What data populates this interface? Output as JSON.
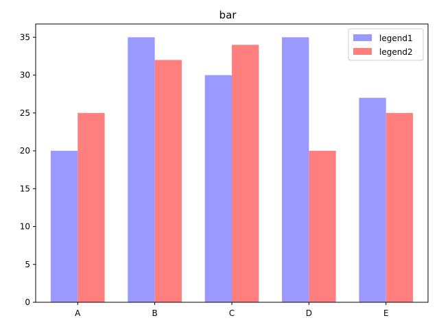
{
  "chart_data": {
    "type": "bar",
    "title": "bar",
    "xlabel": "",
    "ylabel": "",
    "categories": [
      "A",
      "B",
      "C",
      "D",
      "E"
    ],
    "series": [
      {
        "name": "legend1",
        "values": [
          20,
          35,
          30,
          35,
          27
        ],
        "color": "#9999ff"
      },
      {
        "name": "legend2",
        "values": [
          25,
          32,
          34,
          20,
          25
        ],
        "color": "#ff7f7f"
      }
    ],
    "ylim": [
      0,
      36.75
    ],
    "yticks": [
      0,
      5,
      10,
      15,
      20,
      25,
      30,
      35
    ],
    "grid": false,
    "legend_position": "top-right"
  }
}
